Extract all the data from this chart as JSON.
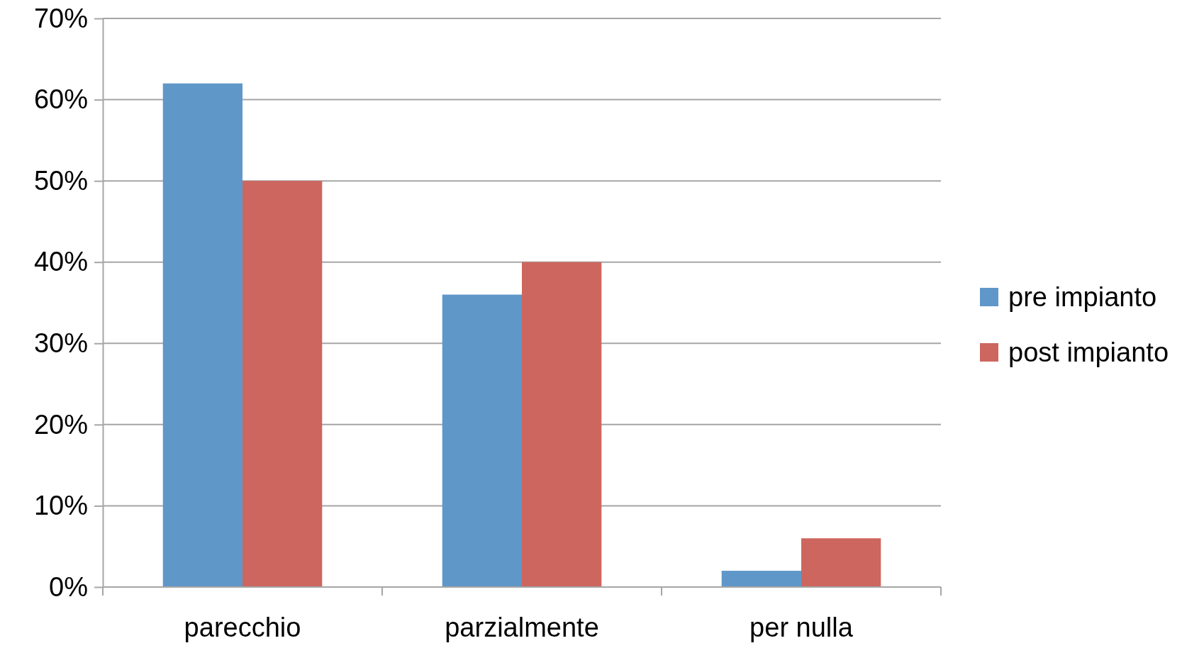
{
  "chart_data": {
    "type": "bar",
    "categories": [
      "parecchio",
      "parzialmente",
      "per nulla"
    ],
    "series": [
      {
        "name": "pre impianto",
        "color": "#6097c9",
        "values": [
          62,
          36,
          2
        ]
      },
      {
        "name": "post impianto",
        "color": "#cd665e",
        "values": [
          50,
          40,
          6
        ]
      }
    ],
    "ylim": [
      0,
      70
    ],
    "yticks": [
      {
        "value": 0,
        "label": "0%"
      },
      {
        "value": 10,
        "label": "10%"
      },
      {
        "value": 20,
        "label": "20%"
      },
      {
        "value": 30,
        "label": "30%"
      },
      {
        "value": 40,
        "label": "40%"
      },
      {
        "value": 50,
        "label": "50%"
      },
      {
        "value": 60,
        "label": "60%"
      },
      {
        "value": 70,
        "label": "70%"
      }
    ],
    "grid": "y",
    "legend": "right"
  }
}
